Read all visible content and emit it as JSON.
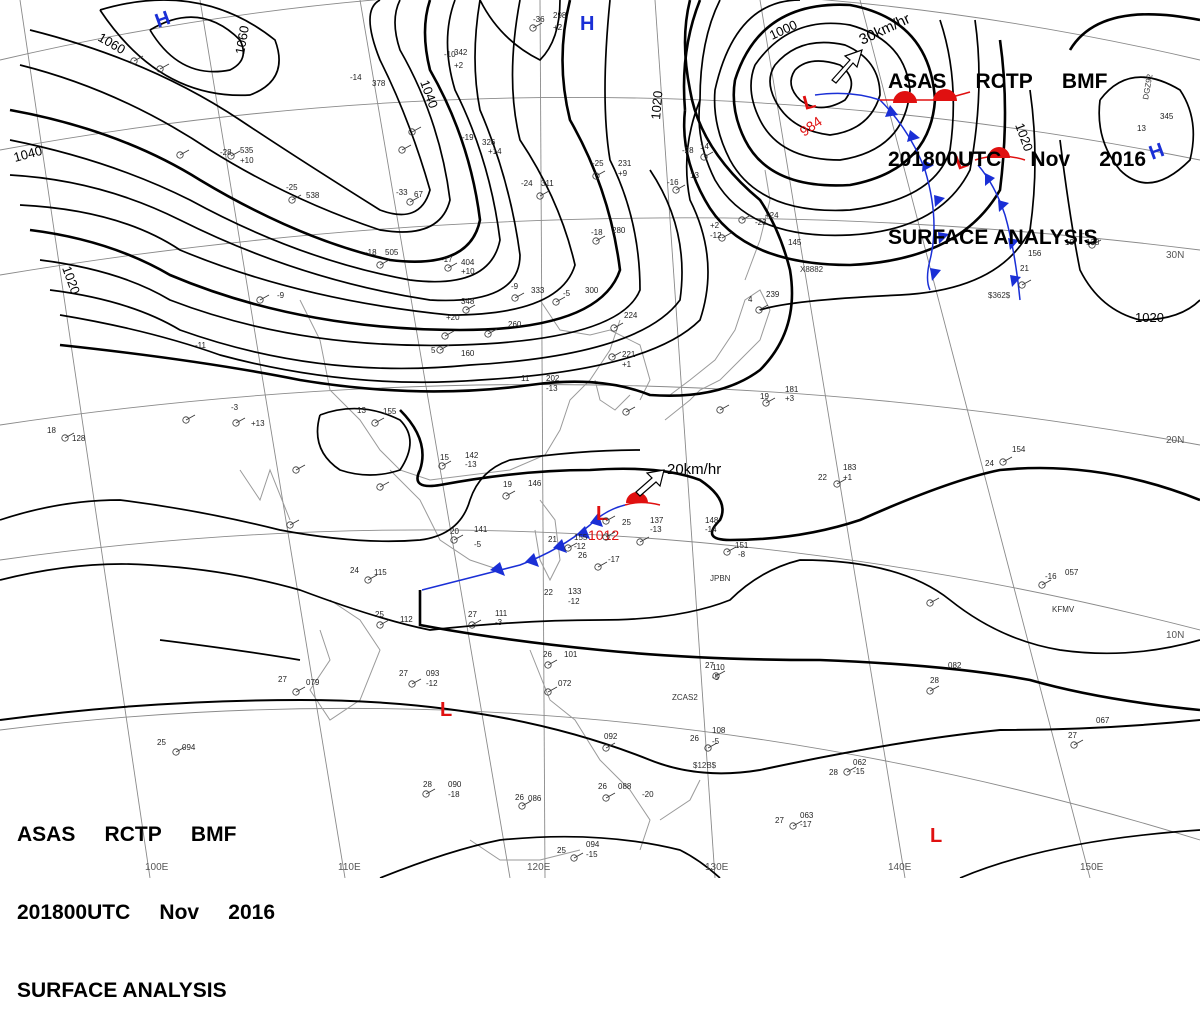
{
  "header": {
    "line1": [
      "ASAS",
      "RCTP",
      "BMF"
    ],
    "line2": [
      "201800UTC",
      "Nov",
      "2016"
    ],
    "line3": "SURFACE ANALYSIS"
  },
  "pressure_systems": [
    {
      "type": "H",
      "color": "#1a2fd6"
    },
    {
      "type": "H",
      "color": "#1a2fd6"
    },
    {
      "type": "H",
      "color": "#1a2fd6"
    },
    {
      "type": "L",
      "color": "#e01010",
      "value": "984"
    },
    {
      "type": "L",
      "color": "#e01010"
    },
    {
      "type": "L",
      "color": "#e01010",
      "value": "1012"
    },
    {
      "type": "L",
      "color": "#e01010"
    },
    {
      "type": "L",
      "color": "#e01010"
    }
  ],
  "isobar_labels": [
    "1060",
    "1060",
    "1040",
    "1040",
    "1020",
    "1020",
    "1020",
    "1020",
    "1000"
  ],
  "motion_vectors": [
    "30km/hr",
    "20km/hr"
  ],
  "lat_labels": [
    "30N",
    "20N",
    "10N"
  ],
  "lon_labels": [
    "100E",
    "110E",
    "120E",
    "130E",
    "140E",
    "150E"
  ],
  "station_labels": [
    "JPBN",
    "ZCAS2",
    "KFMV",
    "$12B$",
    "$362$",
    "X8882",
    "DGZ92"
  ],
  "station_obs": [
    "-36",
    "298",
    "+2",
    "-14",
    "378",
    "-10",
    "342",
    "+2",
    "-19",
    "326",
    "+14",
    "-28",
    "535",
    "+10",
    "-25",
    "538",
    "-33",
    "67",
    "-18",
    "505",
    "-17",
    "404",
    "+10",
    "-24",
    "311",
    "-25",
    "231",
    "+9",
    "-9",
    "333",
    "-5",
    "300",
    "-18",
    "280",
    "-9",
    "348",
    "+20",
    "260",
    "-11",
    "-3",
    "+13",
    "18",
    "128",
    "13",
    "155",
    "5",
    "160",
    "11",
    "202",
    "-13",
    "15",
    "142",
    "-13",
    "19",
    "146",
    "20",
    "141",
    "-5",
    "21",
    "155",
    "-12",
    "24",
    "115",
    "25",
    "112",
    "27",
    "111",
    "-3",
    "22",
    "133",
    "-12",
    "25",
    "137",
    "-13",
    "26",
    "-17",
    "148",
    "-14",
    "151",
    "-8",
    "22",
    "183",
    "+1",
    "24",
    "154",
    "19",
    "181",
    "+3",
    "-28",
    "14",
    "-16",
    "13",
    "-12",
    "+2",
    "-23",
    "+24",
    "145",
    "4",
    "239",
    "224",
    "221",
    "+1",
    "21",
    "156",
    "10",
    "-6",
    "138",
    "13",
    "345",
    "27",
    "093",
    "-12",
    "27",
    "079",
    "25",
    "094",
    "26",
    "101",
    "072",
    "092",
    "26",
    "108",
    "-5",
    "27",
    "110",
    "-5",
    "28",
    "082",
    "28",
    "090",
    "-18",
    "26",
    "086",
    "26",
    "088",
    "-20",
    "25",
    "094",
    "-15",
    "27",
    "063",
    "-17",
    "28",
    "062",
    "-15",
    "27",
    "067",
    "-16",
    "057"
  ],
  "colors": {
    "isobar": "#000000",
    "cold_front": "#1a2fd6",
    "warm_front": "#e01010",
    "high": "#1a2fd6",
    "low": "#e01010",
    "graticule": "#8a8a8a",
    "coast": "#9a9a9a"
  }
}
